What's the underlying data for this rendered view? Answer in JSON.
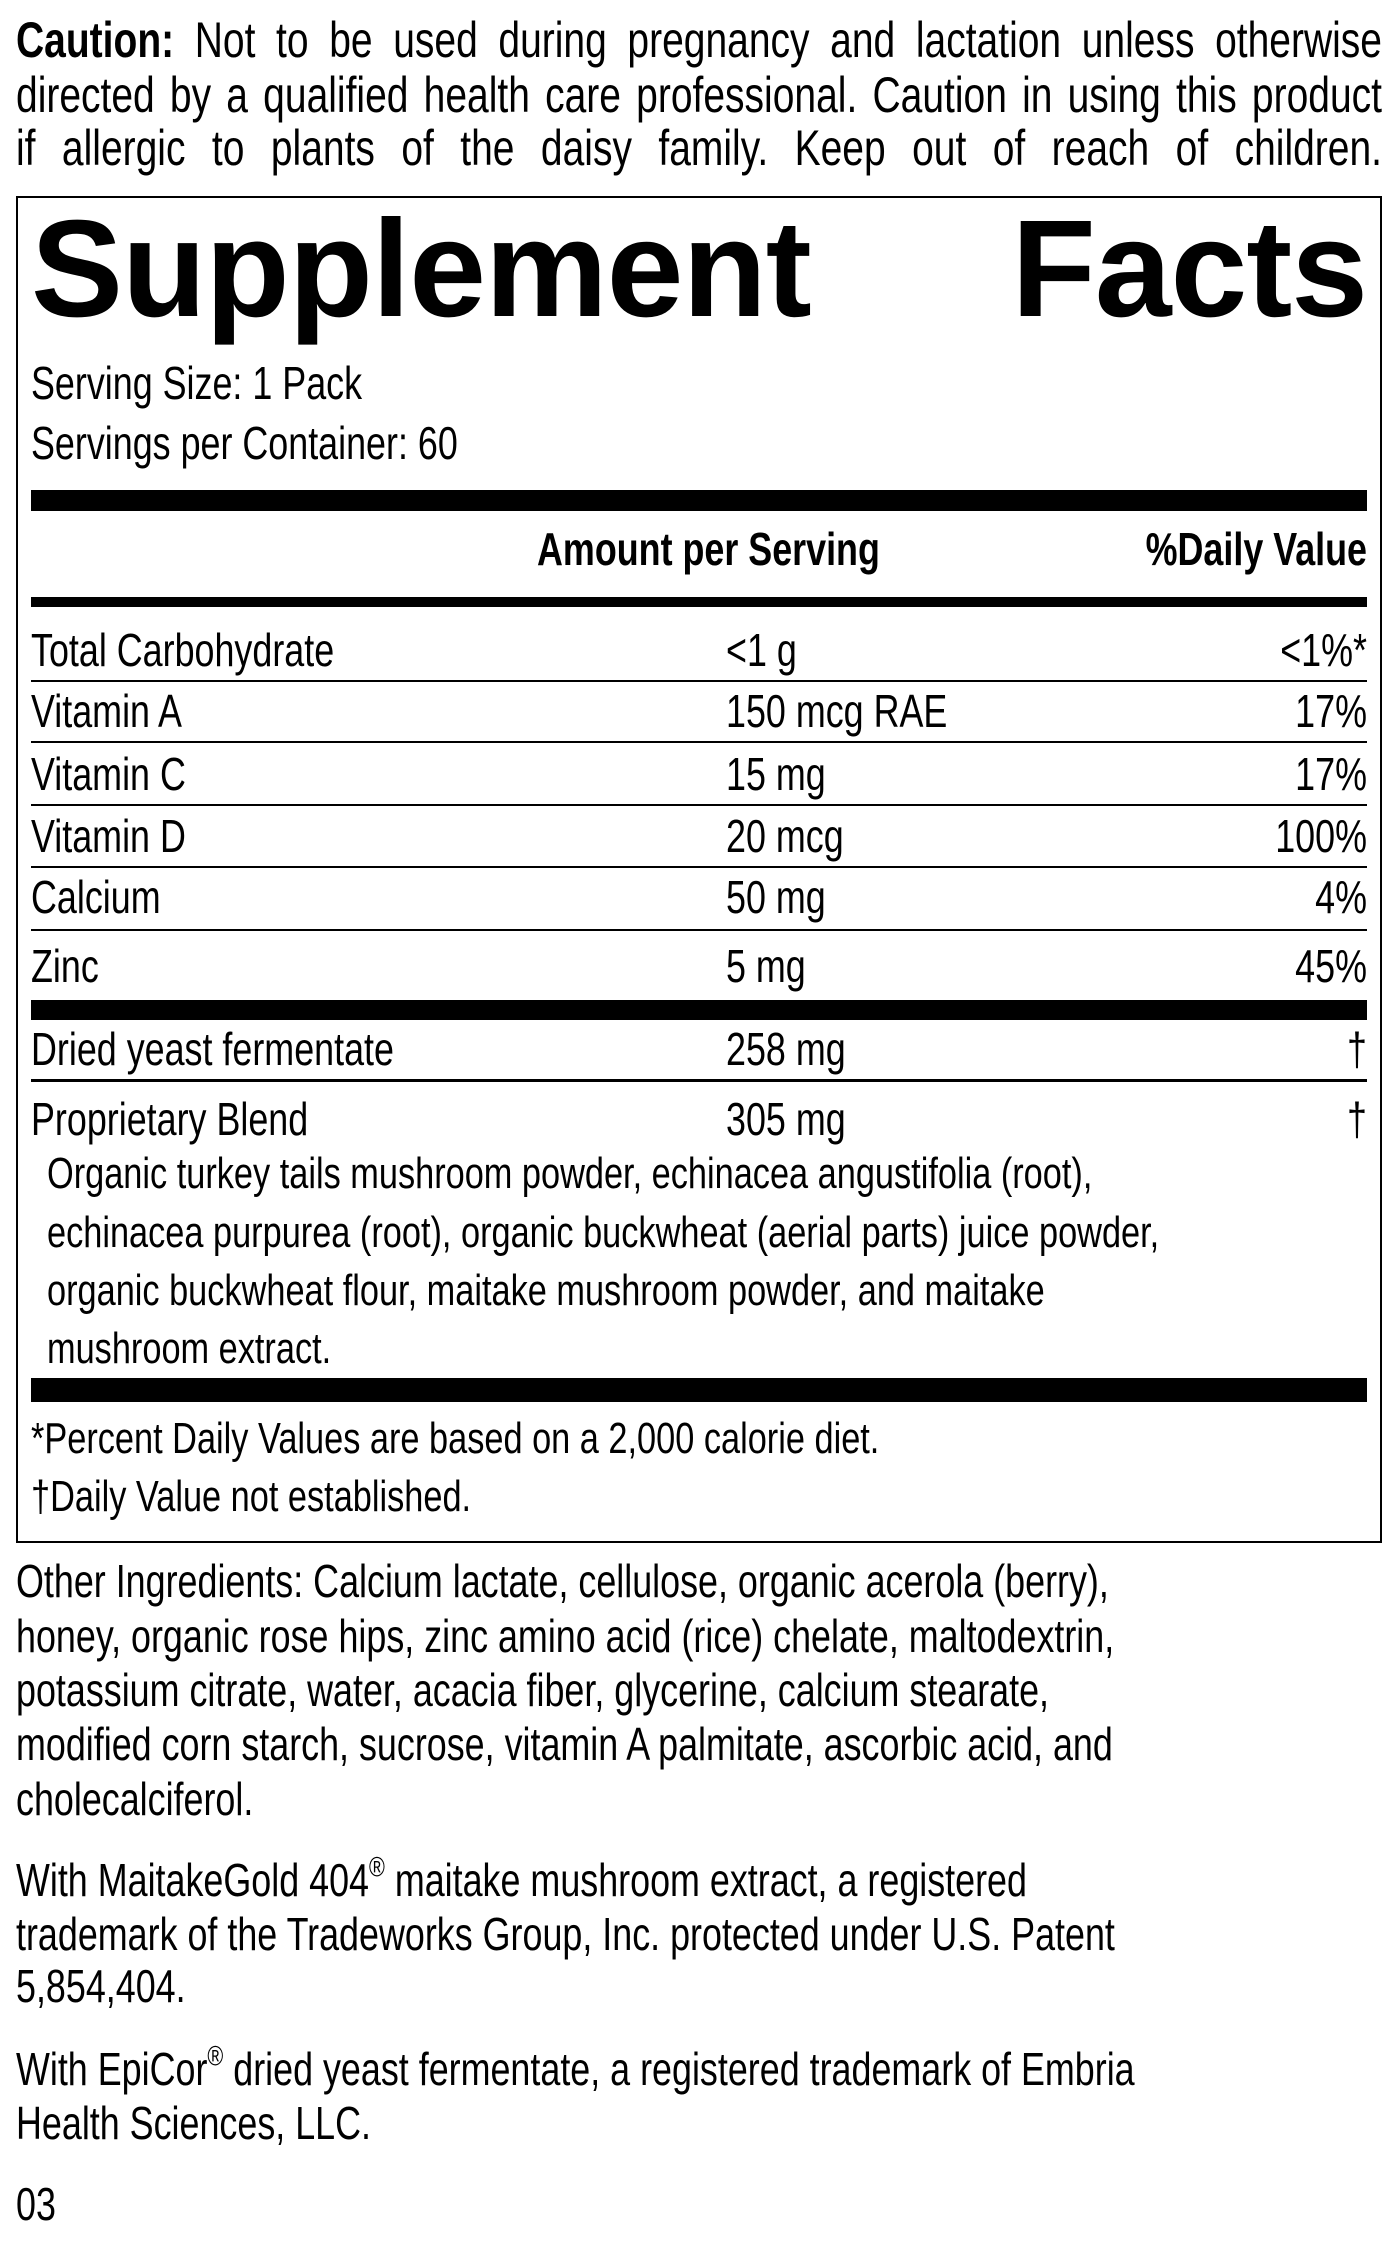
{
  "caution": {
    "label": "Caution:",
    "lines": [
      " Not to be used during pregnancy and lactation unless otherwise",
      "directed by a qualified health care professional. Caution in using this product",
      "if allergic to plants of the daisy family. Keep out of reach of children."
    ]
  },
  "facts": {
    "title_left": "Supplement",
    "title_right": "Facts",
    "serving_size": "Serving Size: 1 Pack",
    "servings_per_container": "Servings per Container: 60",
    "header_amount": "Amount per Serving",
    "header_dv": "%Daily Value",
    "rows": [
      {
        "name": "Total Carbohydrate",
        "amount": "<1 g",
        "dv": "<1%*"
      },
      {
        "name": "Vitamin A",
        "amount": "150 mcg RAE",
        "dv": "17%"
      },
      {
        "name": "Vitamin C",
        "amount": "15 mg",
        "dv": "17%"
      },
      {
        "name": "Vitamin D",
        "amount": "20 mcg",
        "dv": "100%"
      },
      {
        "name": "Calcium",
        "amount": "50 mg",
        "dv": "4%"
      },
      {
        "name": "Zinc",
        "amount": "5 mg",
        "dv": "45%"
      }
    ],
    "other_rows": [
      {
        "name": "Dried yeast fermentate",
        "amount": "258 mg",
        "dv": "†"
      },
      {
        "name": "Proprietary Blend",
        "amount": "305 mg",
        "dv": "†"
      }
    ],
    "blend_lines": [
      "Organic turkey tails mushroom powder, echinacea angustifolia (root),",
      "echinacea purpurea (root), organic buckwheat (aerial parts) juice powder,",
      "organic buckwheat flour, maitake mushroom powder, and maitake",
      "mushroom extract."
    ],
    "footnotes": [
      "*Percent Daily Values are based on a 2,000 calorie diet.",
      "†Daily Value not established."
    ]
  },
  "other_ingredients": [
    "Other Ingredients: Calcium lactate, cellulose, organic acerola (berry),",
    "honey, organic rose hips, zinc amino acid (rice) chelate, maltodextrin,",
    "potassium citrate, water, acacia fiber, glycerine, calcium stearate,",
    "modified corn starch, sucrose, vitamin A palmitate, ascorbic acid, and",
    "cholecalciferol."
  ],
  "maitake": {
    "line1_pre": "With MaitakeGold 404",
    "reg": "®",
    "line1_post": " maitake mushroom extract, a registered",
    "line2": "trademark of the Tradeworks Group, Inc. protected under U.S. Patent",
    "line3": "5,854,404."
  },
  "epicor": {
    "line1_pre": "With EpiCor",
    "reg": "®",
    "line1_post": " dried yeast fermentate, a registered trademark of Embria",
    "line2": "Health Sciences, LLC."
  },
  "code": "03"
}
